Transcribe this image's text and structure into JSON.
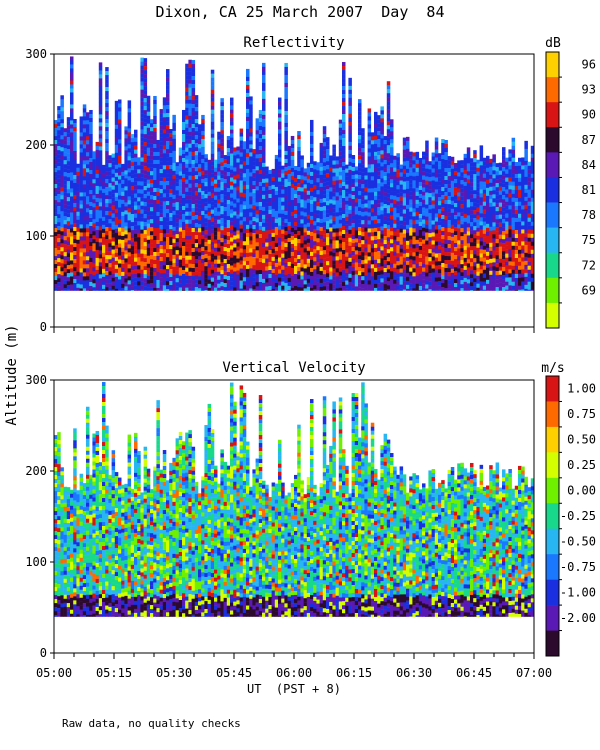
{
  "page": {
    "title": "Dixon, CA 25 March 2007  Day  84",
    "footnote": "Raw data, no quality checks",
    "ylabel": "Altitude (m)"
  },
  "chart_data": [
    {
      "type": "heatmap",
      "title": "Reflectivity",
      "units": "dB",
      "xlabel": "UT  (PST + 8)",
      "xlim_hours": [
        5.0,
        7.0
      ],
      "ylim": [
        0,
        300
      ],
      "yticks": [
        "0",
        "100",
        "200",
        "300"
      ],
      "xticks": [
        "05:00",
        "05:15",
        "05:30",
        "05:45",
        "06:00",
        "06:15",
        "06:30",
        "06:45",
        "07:00"
      ],
      "data_altitude_range": [
        40,
        300
      ],
      "peak_band_altitude": [
        60,
        110
      ],
      "colorbar": {
        "labels": [
          "96",
          "93",
          "90",
          "87",
          "84",
          "81",
          "78",
          "75",
          "72",
          "69"
        ],
        "colors": [
          "#d4ff00",
          "#6ef000",
          "#18d88c",
          "#28b6f2",
          "#1a78ff",
          "#1a30e0",
          "#5a18b4",
          "#2c0a2e",
          "#d81414",
          "#ff6a00",
          "#ffd000"
        ]
      }
    },
    {
      "type": "heatmap",
      "title": "Vertical Velocity",
      "units": "m/s",
      "xlabel": "UT  (PST + 8)",
      "xlim_hours": [
        5.0,
        7.0
      ],
      "ylim": [
        0,
        300
      ],
      "yticks": [
        "0",
        "100",
        "200",
        "300"
      ],
      "xticks": [
        "05:00",
        "05:15",
        "05:30",
        "05:45",
        "06:00",
        "06:15",
        "06:30",
        "06:45",
        "07:00"
      ],
      "data_altitude_range": [
        40,
        300
      ],
      "colorbar": {
        "labels": [
          "1.00",
          "0.75",
          "0.50",
          "0.25",
          "0.00",
          "-0.25",
          "-0.50",
          "-0.75",
          "-1.00",
          "-2.00"
        ],
        "colors": [
          "#2c0a2e",
          "#5a18b4",
          "#1a30e0",
          "#1a78ff",
          "#28b6f2",
          "#18d88c",
          "#6ef000",
          "#d4ff00",
          "#ffd000",
          "#ff6a00",
          "#d81414"
        ]
      }
    }
  ]
}
